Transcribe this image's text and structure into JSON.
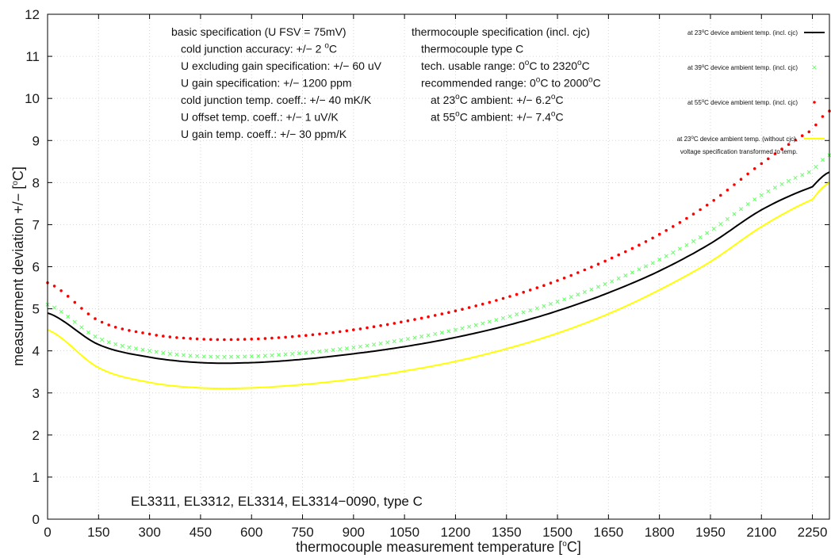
{
  "chart_data": {
    "type": "line",
    "xlabel": "thermocouple measurement temperature [°C]",
    "ylabel": "measurement deviation +/− [°C]",
    "xlim": [
      0,
      2300
    ],
    "ylim": [
      0,
      12
    ],
    "xticks": [
      0,
      150,
      300,
      450,
      600,
      750,
      900,
      1050,
      1200,
      1350,
      1500,
      1650,
      1800,
      1950,
      2100,
      2250
    ],
    "yticks": [
      0,
      1,
      2,
      3,
      4,
      5,
      6,
      7,
      8,
      9,
      10,
      11,
      12
    ],
    "grid": true,
    "legend_position": "top-right",
    "x": [
      0,
      150,
      300,
      450,
      600,
      750,
      900,
      1050,
      1200,
      1350,
      1500,
      1650,
      1800,
      1950,
      2100,
      2250,
      2300
    ],
    "series": [
      {
        "name": "at 23°C device ambient temp. (incl. cjc)",
        "style": "solid",
        "color": "#000000",
        "values": [
          4.9,
          4.15,
          3.85,
          3.72,
          3.72,
          3.8,
          3.93,
          4.1,
          4.32,
          4.6,
          4.95,
          5.38,
          5.9,
          6.55,
          7.35,
          7.9,
          8.25
        ]
      },
      {
        "name": "at 39°C device ambient temp. (incl. cjc)",
        "style": "cross",
        "color": "#66ff66",
        "values": [
          5.1,
          4.3,
          4.0,
          3.87,
          3.87,
          3.95,
          4.08,
          4.27,
          4.5,
          4.8,
          5.17,
          5.62,
          6.17,
          6.85,
          7.7,
          8.28,
          8.65
        ]
      },
      {
        "name": "at 55°C device ambient temp. (incl. cjc)",
        "style": "dotted",
        "color": "#ff0000",
        "values": [
          5.62,
          4.72,
          4.4,
          4.28,
          4.28,
          4.36,
          4.5,
          4.7,
          4.95,
          5.27,
          5.67,
          6.17,
          6.77,
          7.52,
          8.45,
          9.25,
          9.7
        ]
      },
      {
        "name": "at 23°C device ambient temp. (without cjc), voltage specification transformed to temp.",
        "style": "solid",
        "color": "#ffff00",
        "values": [
          4.5,
          3.6,
          3.25,
          3.12,
          3.12,
          3.2,
          3.33,
          3.52,
          3.75,
          4.05,
          4.42,
          4.88,
          5.45,
          6.12,
          6.95,
          7.6,
          8.0
        ]
      }
    ],
    "annotations": {
      "basic": [
        {
          "pre": "basic specification (U FSV = 75mV)",
          "sup": "",
          "post": ""
        },
        {
          "pre": "cold junction accuracy: +/− 2 ",
          "sup": "o",
          "post": "C"
        },
        {
          "pre": "U excluding gain specification: +/− 60 uV",
          "sup": "",
          "post": ""
        },
        {
          "pre": "U gain specification: +/− 1200 ppm",
          "sup": "",
          "post": ""
        },
        {
          "pre": "cold junction temp. coeff.: +/− 40 mK/K",
          "sup": "",
          "post": ""
        },
        {
          "pre": "U offset temp. coeff.: +/− 1 uV/K",
          "sup": "",
          "post": ""
        },
        {
          "pre": "U gain temp. coeff.: +/− 30 ppm/K",
          "sup": "",
          "post": ""
        }
      ],
      "thermo": [
        {
          "parts": [
            "thermocouple specification (incl. cjc)"
          ]
        },
        {
          "parts": [
            "thermocouple type C"
          ]
        },
        {
          "parts": [
            "tech. usable range: 0",
            "^o",
            "C to 2320",
            "^o",
            "C"
          ]
        },
        {
          "parts": [
            "recommended range: 0",
            "^o",
            "C to 2000",
            "^o",
            "C"
          ]
        },
        {
          "parts": [
            "at 23",
            "^o",
            "C ambient: +/− 6.2",
            "^o",
            "C"
          ]
        },
        {
          "parts": [
            "at 55",
            "^o",
            "C ambient: +/− 7.4",
            "^o",
            "C"
          ]
        }
      ],
      "models": "EL3311, EL3312, EL3314, EL3314−0090, type C"
    }
  }
}
